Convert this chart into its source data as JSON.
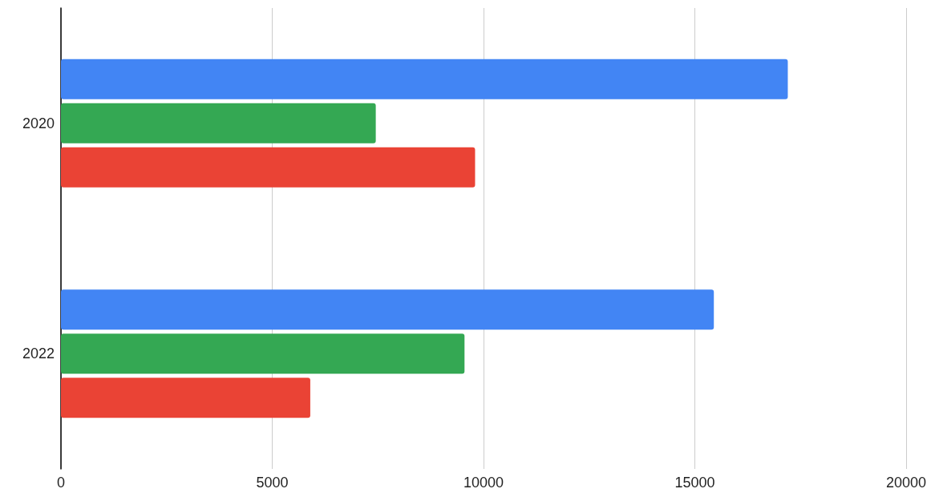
{
  "chart_data": {
    "type": "bar",
    "orientation": "horizontal",
    "categories": [
      "2020",
      "2022"
    ],
    "series": [
      {
        "color": "#4285f4",
        "values": [
          17200,
          15450
        ]
      },
      {
        "color": "#34a853",
        "values": [
          7450,
          9550
        ]
      },
      {
        "color": "#ea4335",
        "values": [
          9800,
          5900
        ]
      }
    ],
    "xlim": [
      0,
      20000
    ],
    "xticks": [
      0,
      5000,
      10000,
      15000,
      20000
    ],
    "grid": "x"
  }
}
